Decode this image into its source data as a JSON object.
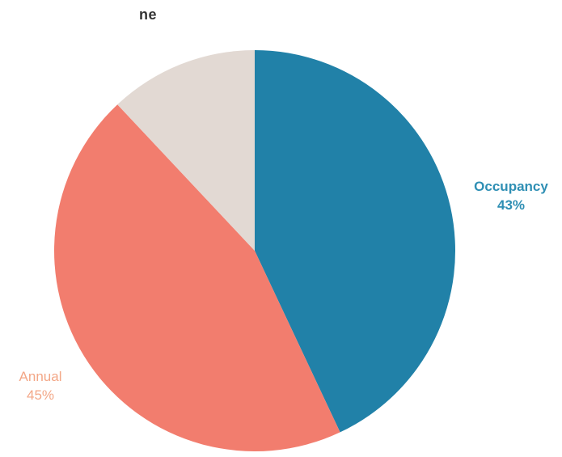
{
  "title": "ne",
  "chart_data": {
    "type": "pie",
    "title": "ne",
    "start_angle_deg": 0,
    "direction": "clockwise",
    "slices": [
      {
        "label": "Occupancy",
        "value": 43,
        "value_label": "43%",
        "color": "#2181A8"
      },
      {
        "label": "Annual",
        "value": 45,
        "value_label": "45%",
        "color": "#F27D6E"
      },
      {
        "label": "",
        "value": 12,
        "value_label": "",
        "color": "#E2D9D3"
      }
    ],
    "label_colors": {
      "Occupancy": "#2F8FB4",
      "Annual": "#F3A787"
    }
  }
}
